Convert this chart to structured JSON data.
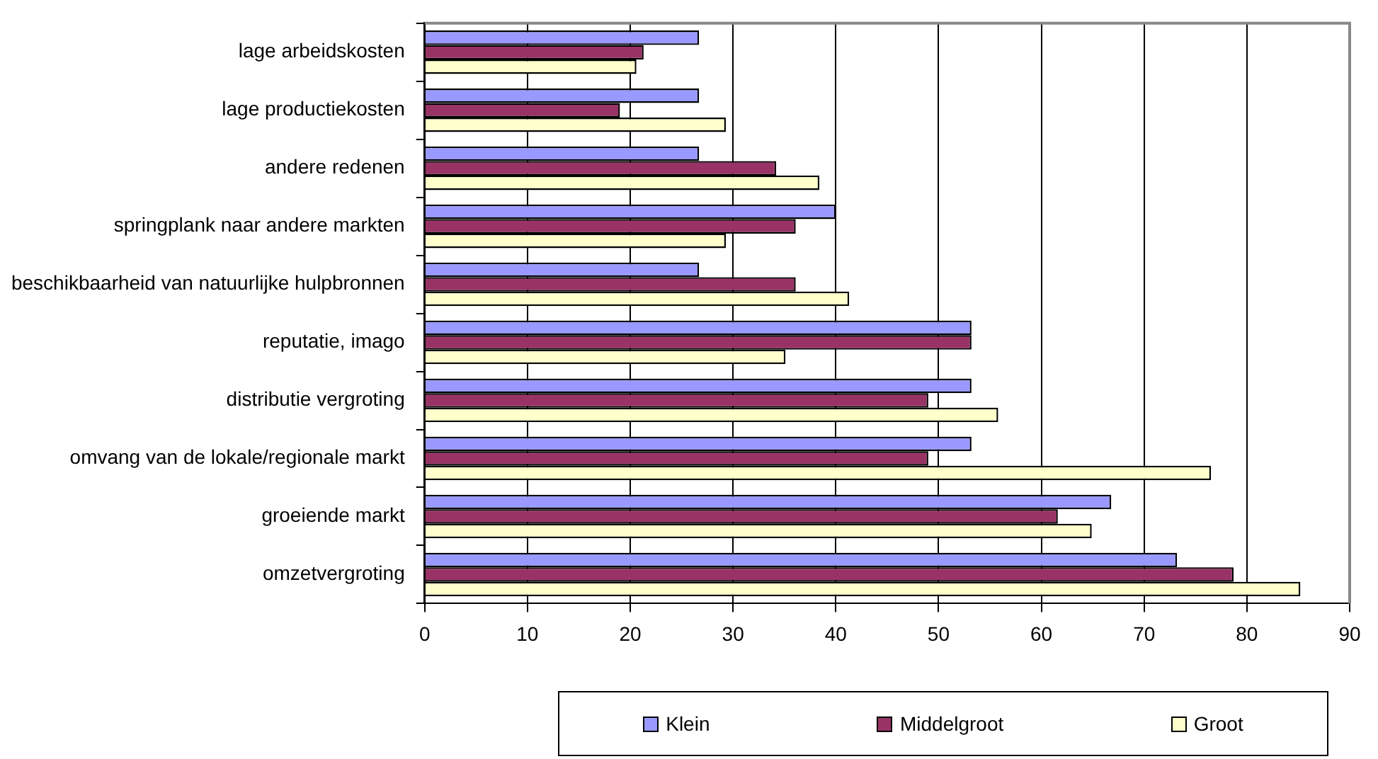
{
  "chart_data": {
    "type": "bar",
    "orientation": "horizontal",
    "categories": [
      "lage arbeidskosten",
      "lage productiekosten",
      "andere redenen",
      "springplank naar andere markten",
      "beschikbaarheid van natuurlijke hulpbronnen",
      "reputatie, imago",
      "distributie vergroting",
      "omvang van de lokale/regionale markt",
      "groeiende markt",
      "omzetvergroting"
    ],
    "series": [
      {
        "name": "Klein",
        "color": "#9999ff",
        "values": [
          26.7,
          26.7,
          26.7,
          40,
          26.7,
          53.2,
          53.2,
          53.2,
          66.8,
          73.2
        ]
      },
      {
        "name": "Middelgroot",
        "color": "#993366",
        "values": [
          21.3,
          19.0,
          34.2,
          36.1,
          36.1,
          53.2,
          49.0,
          49.0,
          61.6,
          78.7
        ]
      },
      {
        "name": "Groot",
        "color": "#ffffcc",
        "values": [
          20.6,
          29.3,
          38.4,
          29.3,
          41.3,
          35.1,
          55.8,
          76.5,
          64.9,
          85.2
        ]
      }
    ],
    "xlim": [
      0,
      90
    ],
    "xticks": [
      0,
      10,
      20,
      30,
      40,
      50,
      60,
      70,
      80,
      90
    ],
    "grid": "x",
    "legend": "bottom"
  }
}
